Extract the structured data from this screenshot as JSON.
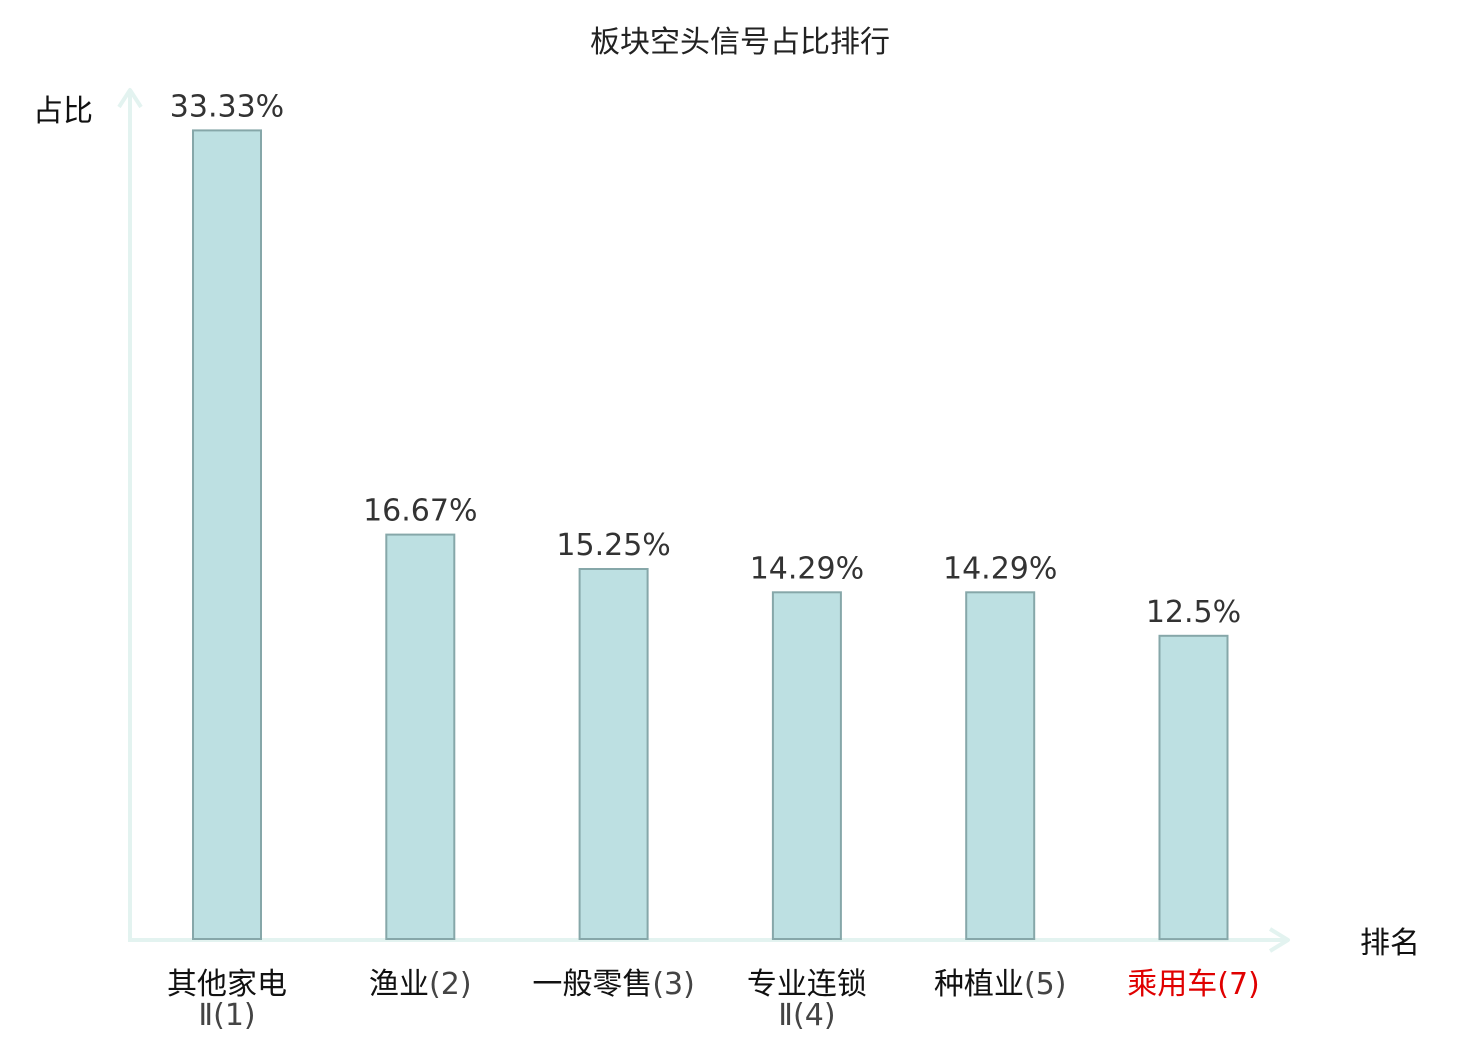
{
  "chart_data": {
    "type": "bar",
    "title": "板块空头信号占比排行",
    "ylabel": "占比",
    "xlabel": "排名",
    "ylim": [
      0,
      35
    ],
    "grid": false,
    "categories": [
      {
        "name": "其他家电",
        "suffix": "Ⅱ(1)",
        "highlight": false
      },
      {
        "name": "渔业",
        "suffix": "(2)",
        "highlight": false
      },
      {
        "name": "一般零售",
        "suffix": "(3)",
        "highlight": false
      },
      {
        "name": "专业连锁",
        "suffix": "Ⅱ(4)",
        "highlight": false
      },
      {
        "name": "种植业",
        "suffix": "(5)",
        "highlight": false
      },
      {
        "name": "乘用车",
        "suffix": "(7)",
        "highlight": true
      }
    ],
    "values": [
      33.33,
      16.67,
      15.25,
      14.29,
      14.29,
      12.5
    ],
    "value_labels": [
      "33.33%",
      "16.67%",
      "15.25%",
      "14.29%",
      "14.29%",
      "12.5%"
    ],
    "colors": {
      "bar_fill": "#bde0e2",
      "bar_stroke": "#86a7a9",
      "axis": "#e3f3f0",
      "name_text": "#111111",
      "suffix_text": "#444444",
      "highlight_text": "#e00000"
    }
  }
}
